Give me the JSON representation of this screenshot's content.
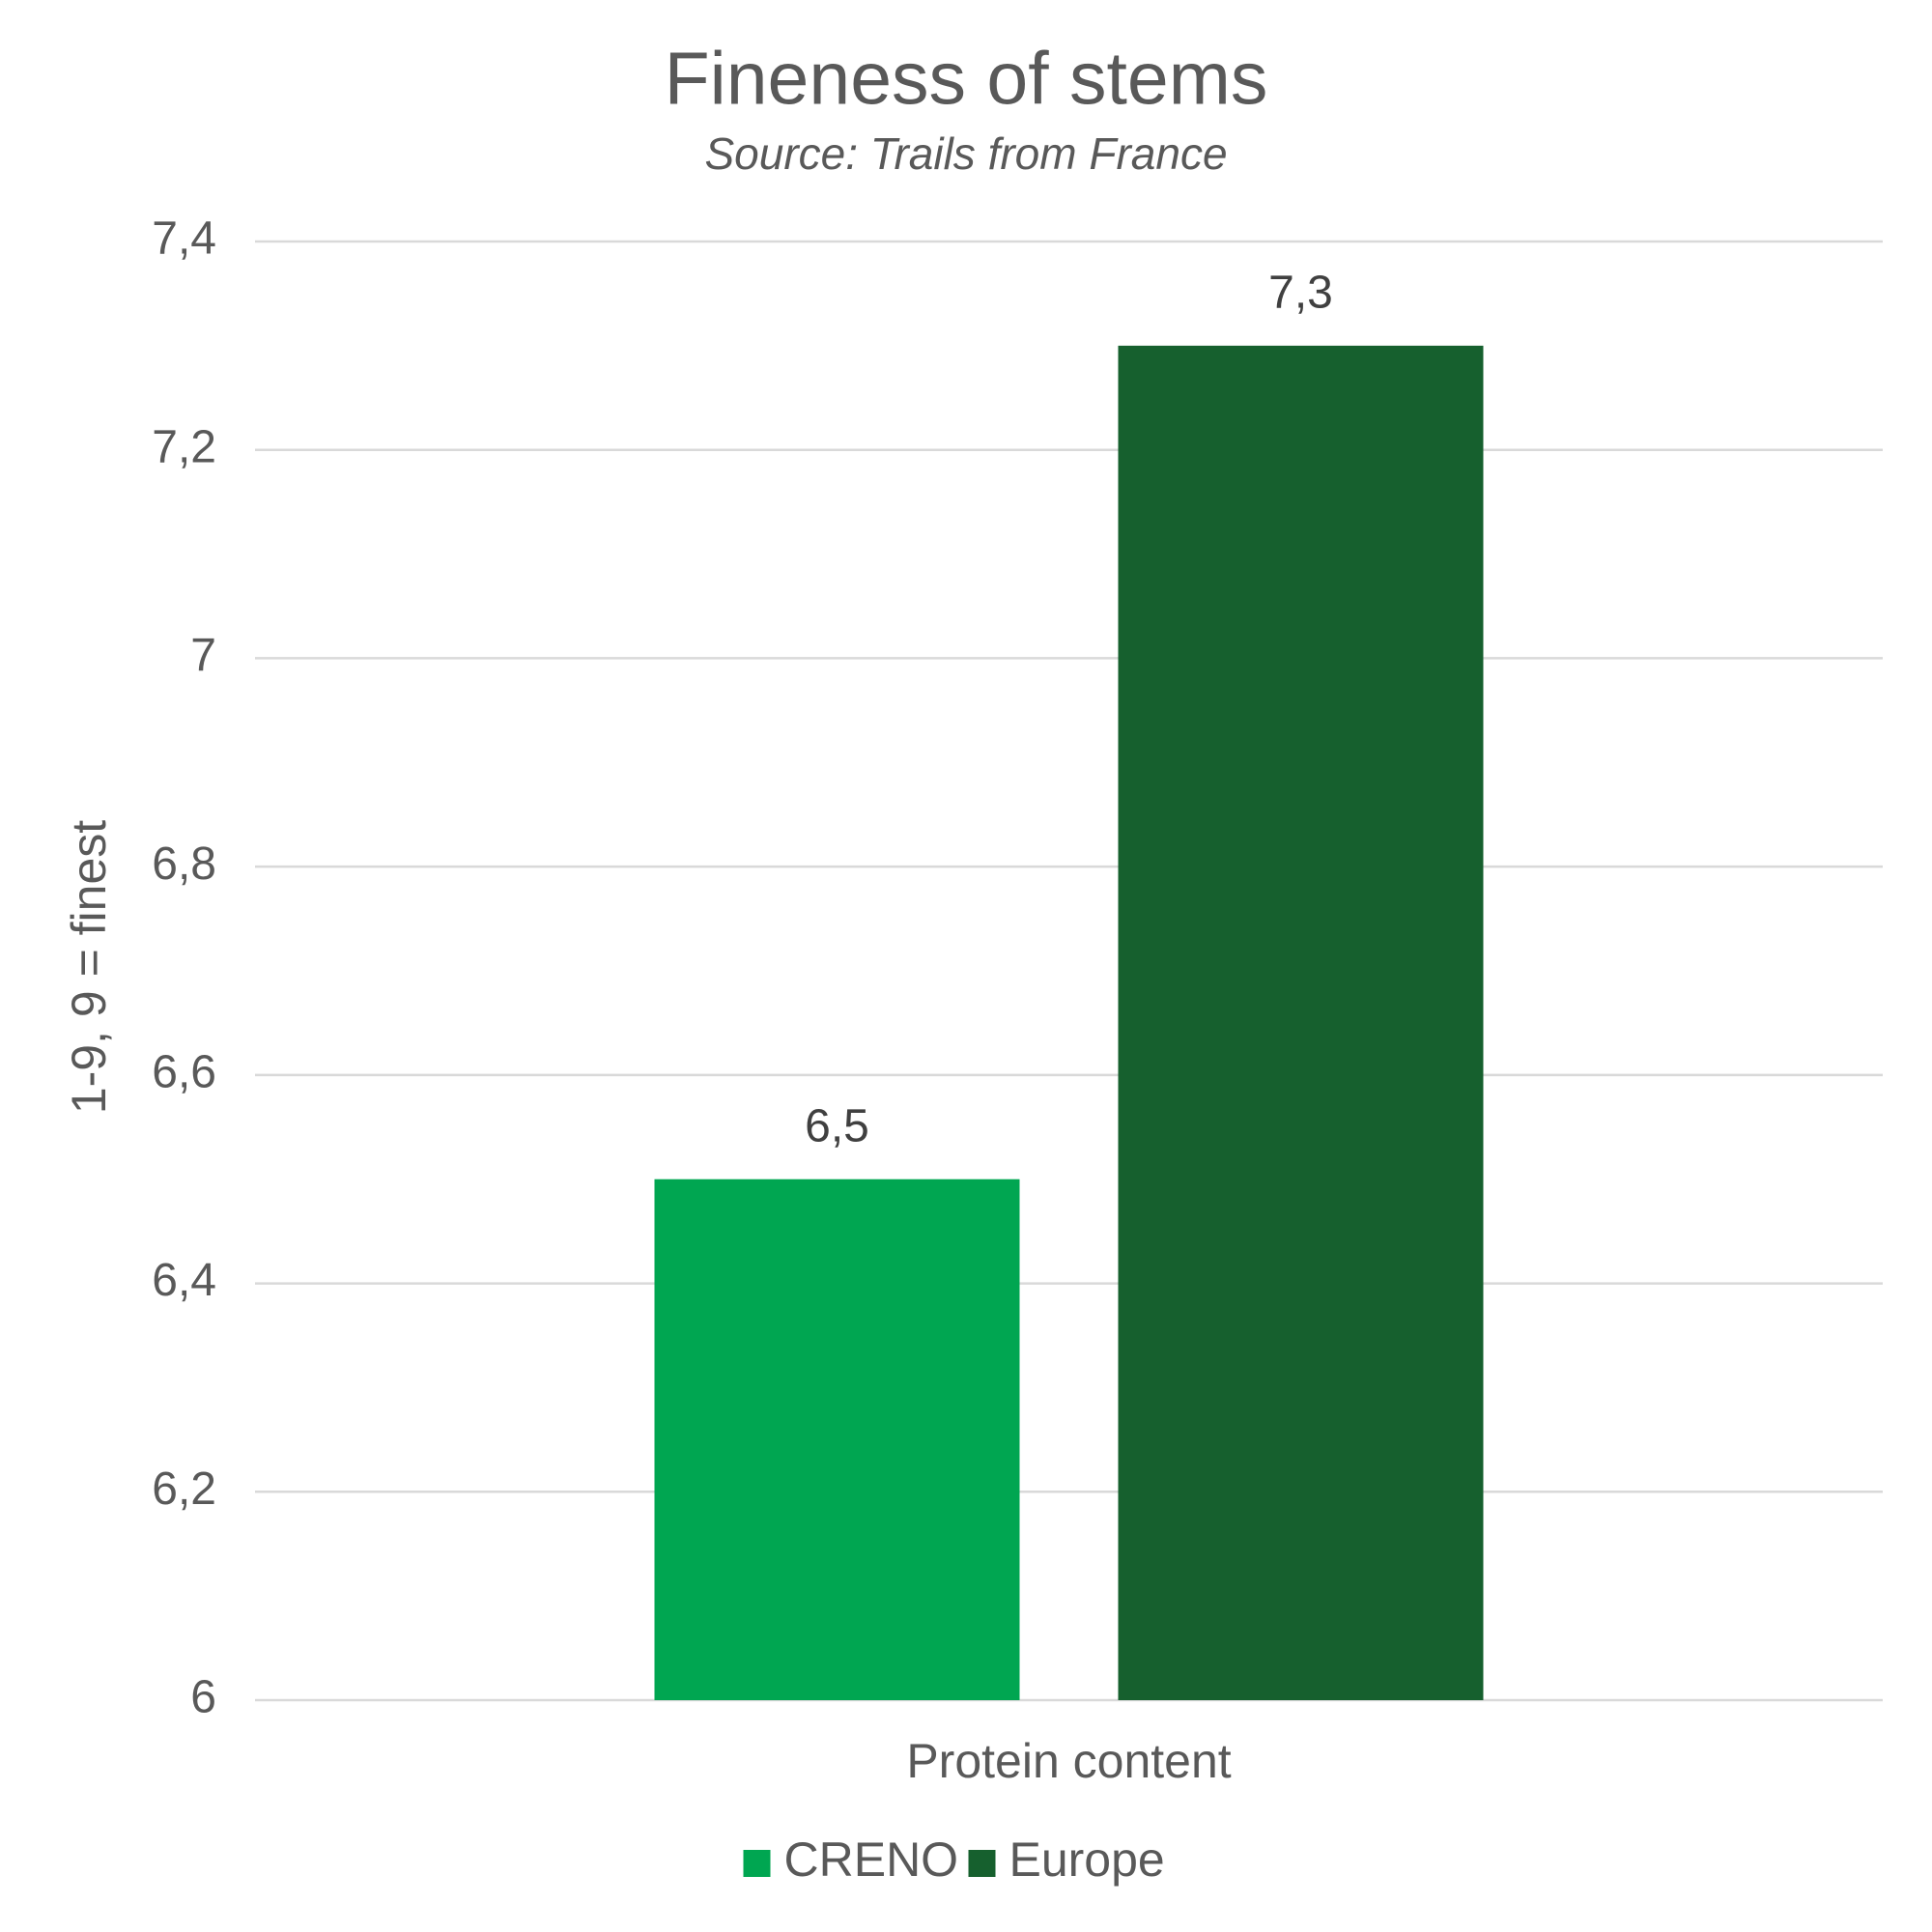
{
  "chart_data": {
    "type": "bar",
    "title": "Fineness of stems",
    "subtitle": "Source: Trails from France",
    "y_label": "1-9, 9 = finest",
    "categories": [
      "Protein content"
    ],
    "series": [
      {
        "name": "CRENO",
        "color": "#00a651",
        "values": [
          6.5
        ],
        "value_labels": [
          "6,5"
        ]
      },
      {
        "name": "Europe",
        "color": "#16602e",
        "values": [
          7.3
        ],
        "value_labels": [
          "7,3"
        ]
      }
    ],
    "ylim": [
      6,
      7.4
    ],
    "yticks": [
      6,
      {
        "value": 6.2,
        "label": "6,2"
      },
      {
        "value": 6.4,
        "label": "6,4"
      },
      {
        "value": 6.6,
        "label": "6,6"
      },
      {
        "value": 6.8,
        "label": "6,8"
      },
      7,
      {
        "value": 7.2,
        "label": "7,2"
      },
      {
        "value": 7.4,
        "label": "7,4"
      }
    ],
    "grid": true,
    "legend": "bottom"
  }
}
